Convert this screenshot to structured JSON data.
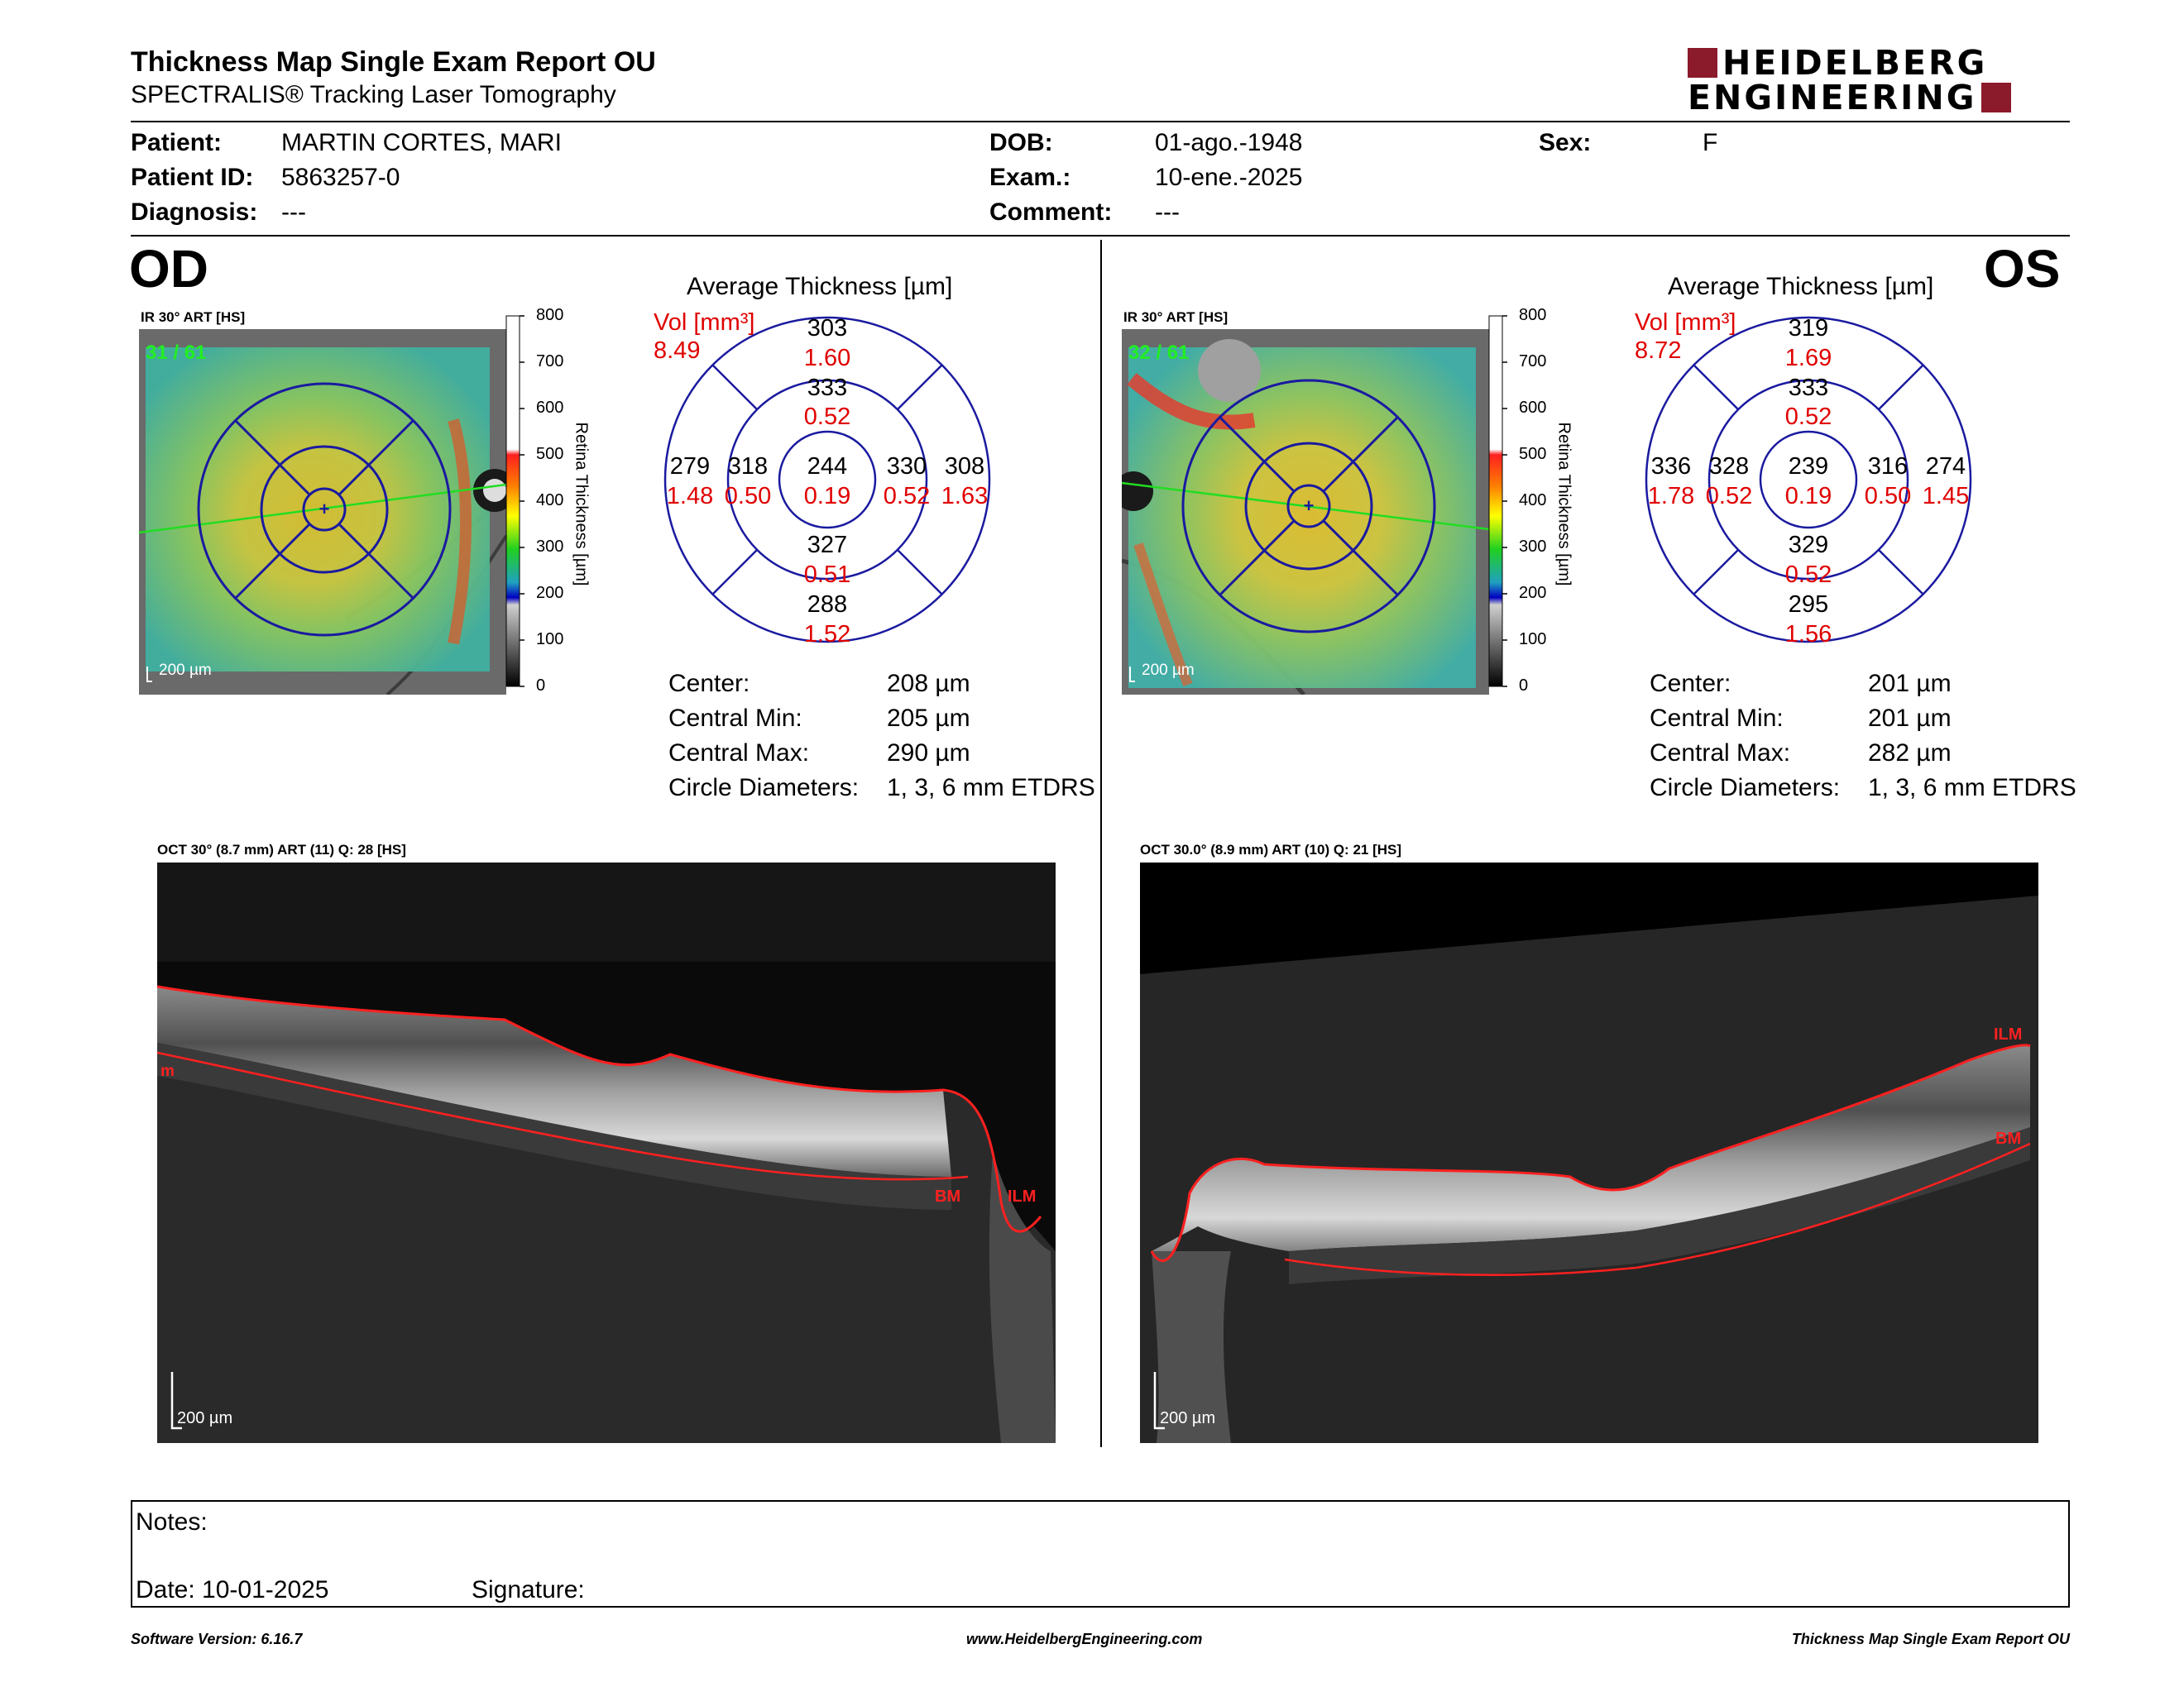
{
  "header": {
    "title": "Thickness Map Single Exam Report OU",
    "subtitle": "SPECTRALIS® Tracking Laser Tomography",
    "logo_line1": "HEIDELBERG",
    "logo_line2": "ENGINEERING",
    "logo_color": "#8b1a2b"
  },
  "patient": {
    "patient_label": "Patient:",
    "patient_value": "MARTIN CORTES, MARI",
    "id_label": "Patient ID:",
    "id_value": "5863257-0",
    "diagnosis_label": "Diagnosis:",
    "diagnosis_value": "---",
    "dob_label": "DOB:",
    "dob_value": "01-ago.-1948",
    "exam_label": "Exam.:",
    "exam_value": "10-ene.-2025",
    "comment_label": "Comment:",
    "comment_value": "---",
    "sex_label": "Sex:",
    "sex_value": "F"
  },
  "od": {
    "eye_label": "OD",
    "fundus_label": "IR 30° ART [HS]",
    "frame_counter": "31 / 61",
    "fundus_scale": "200 µm",
    "colorbar_ticks": [
      "800",
      "700",
      "600",
      "500",
      "400",
      "300",
      "200",
      "100",
      "0"
    ],
    "colorbar_label": "Retina Thickness [µm]",
    "avg_title": "Average Thickness [µm]",
    "vol_label": "Vol [mm³]",
    "vol_value": "8.49",
    "sectors": {
      "outer_superior": {
        "thickness": "303",
        "volume": "1.60"
      },
      "inner_superior": {
        "thickness": "333",
        "volume": "0.52"
      },
      "outer_temporal": {
        "thickness": "279",
        "volume": "1.48"
      },
      "inner_temporal": {
        "thickness": "318",
        "volume": "0.50"
      },
      "center": {
        "thickness": "244",
        "volume": "0.19"
      },
      "inner_nasal": {
        "thickness": "330",
        "volume": "0.52"
      },
      "outer_nasal": {
        "thickness": "308",
        "volume": "1.63"
      },
      "inner_inferior": {
        "thickness": "327",
        "volume": "0.51"
      },
      "outer_inferior": {
        "thickness": "288",
        "volume": "1.52"
      }
    },
    "stats": {
      "center_label": "Center:",
      "center_value": "208 µm",
      "min_label": "Central Min:",
      "min_value": "205 µm",
      "max_label": "Central Max:",
      "max_value": "290 µm",
      "diam_label": "Circle Diameters:",
      "diam_value": "1, 3, 6 mm ETDRS"
    },
    "oct_label": "OCT 30° (8.7 mm) ART (11) Q: 28 [HS]",
    "oct_scale": "200 µm",
    "marker_ilm": "ILM",
    "marker_bm": "BM",
    "marker_cut": "m"
  },
  "os": {
    "eye_label": "OS",
    "fundus_label": "IR 30° ART [HS]",
    "frame_counter": "32 / 61",
    "fundus_scale": "200 µm",
    "colorbar_ticks": [
      "800",
      "700",
      "600",
      "500",
      "400",
      "300",
      "200",
      "100",
      "0"
    ],
    "colorbar_label": "Retina Thickness [µm]",
    "avg_title": "Average Thickness [µm]",
    "vol_label": "Vol [mm³]",
    "vol_value": "8.72",
    "sectors": {
      "outer_superior": {
        "thickness": "319",
        "volume": "1.69"
      },
      "inner_superior": {
        "thickness": "333",
        "volume": "0.52"
      },
      "outer_temporal": {
        "thickness": "336",
        "volume": "1.78"
      },
      "inner_temporal": {
        "thickness": "328",
        "volume": "0.52"
      },
      "center": {
        "thickness": "239",
        "volume": "0.19"
      },
      "inner_nasal": {
        "thickness": "316",
        "volume": "0.50"
      },
      "outer_nasal": {
        "thickness": "274",
        "volume": "1.45"
      },
      "inner_inferior": {
        "thickness": "329",
        "volume": "0.52"
      },
      "outer_inferior": {
        "thickness": "295",
        "volume": "1.56"
      }
    },
    "stats": {
      "center_label": "Center:",
      "center_value": "201 µm",
      "min_label": "Central Min:",
      "min_value": "201 µm",
      "max_label": "Central Max:",
      "max_value": "282 µm",
      "diam_label": "Circle Diameters:",
      "diam_value": "1, 3, 6 mm ETDRS"
    },
    "oct_label": "OCT 30.0° (8.9 mm) ART (10) Q: 21 [HS]",
    "oct_scale": "200 µm",
    "marker_ilm": "ILM",
    "marker_bm": "BM"
  },
  "notes": {
    "notes_label": "Notes:",
    "date_label": "Date: 10-01-2025",
    "signature_label": "Signature:"
  },
  "footer": {
    "software": "Software Version: 6.16.7",
    "website": "www.HeidelbergEngineering.com",
    "report_name": "Thickness Map Single Exam Report OU"
  },
  "colors": {
    "etdrs_grid": "#1a1aa0",
    "volume_red": "#e00000",
    "segmentation_red": "#ff2020",
    "scan_line_green": "#22dd22",
    "frame_counter_green": "#22ee22"
  }
}
